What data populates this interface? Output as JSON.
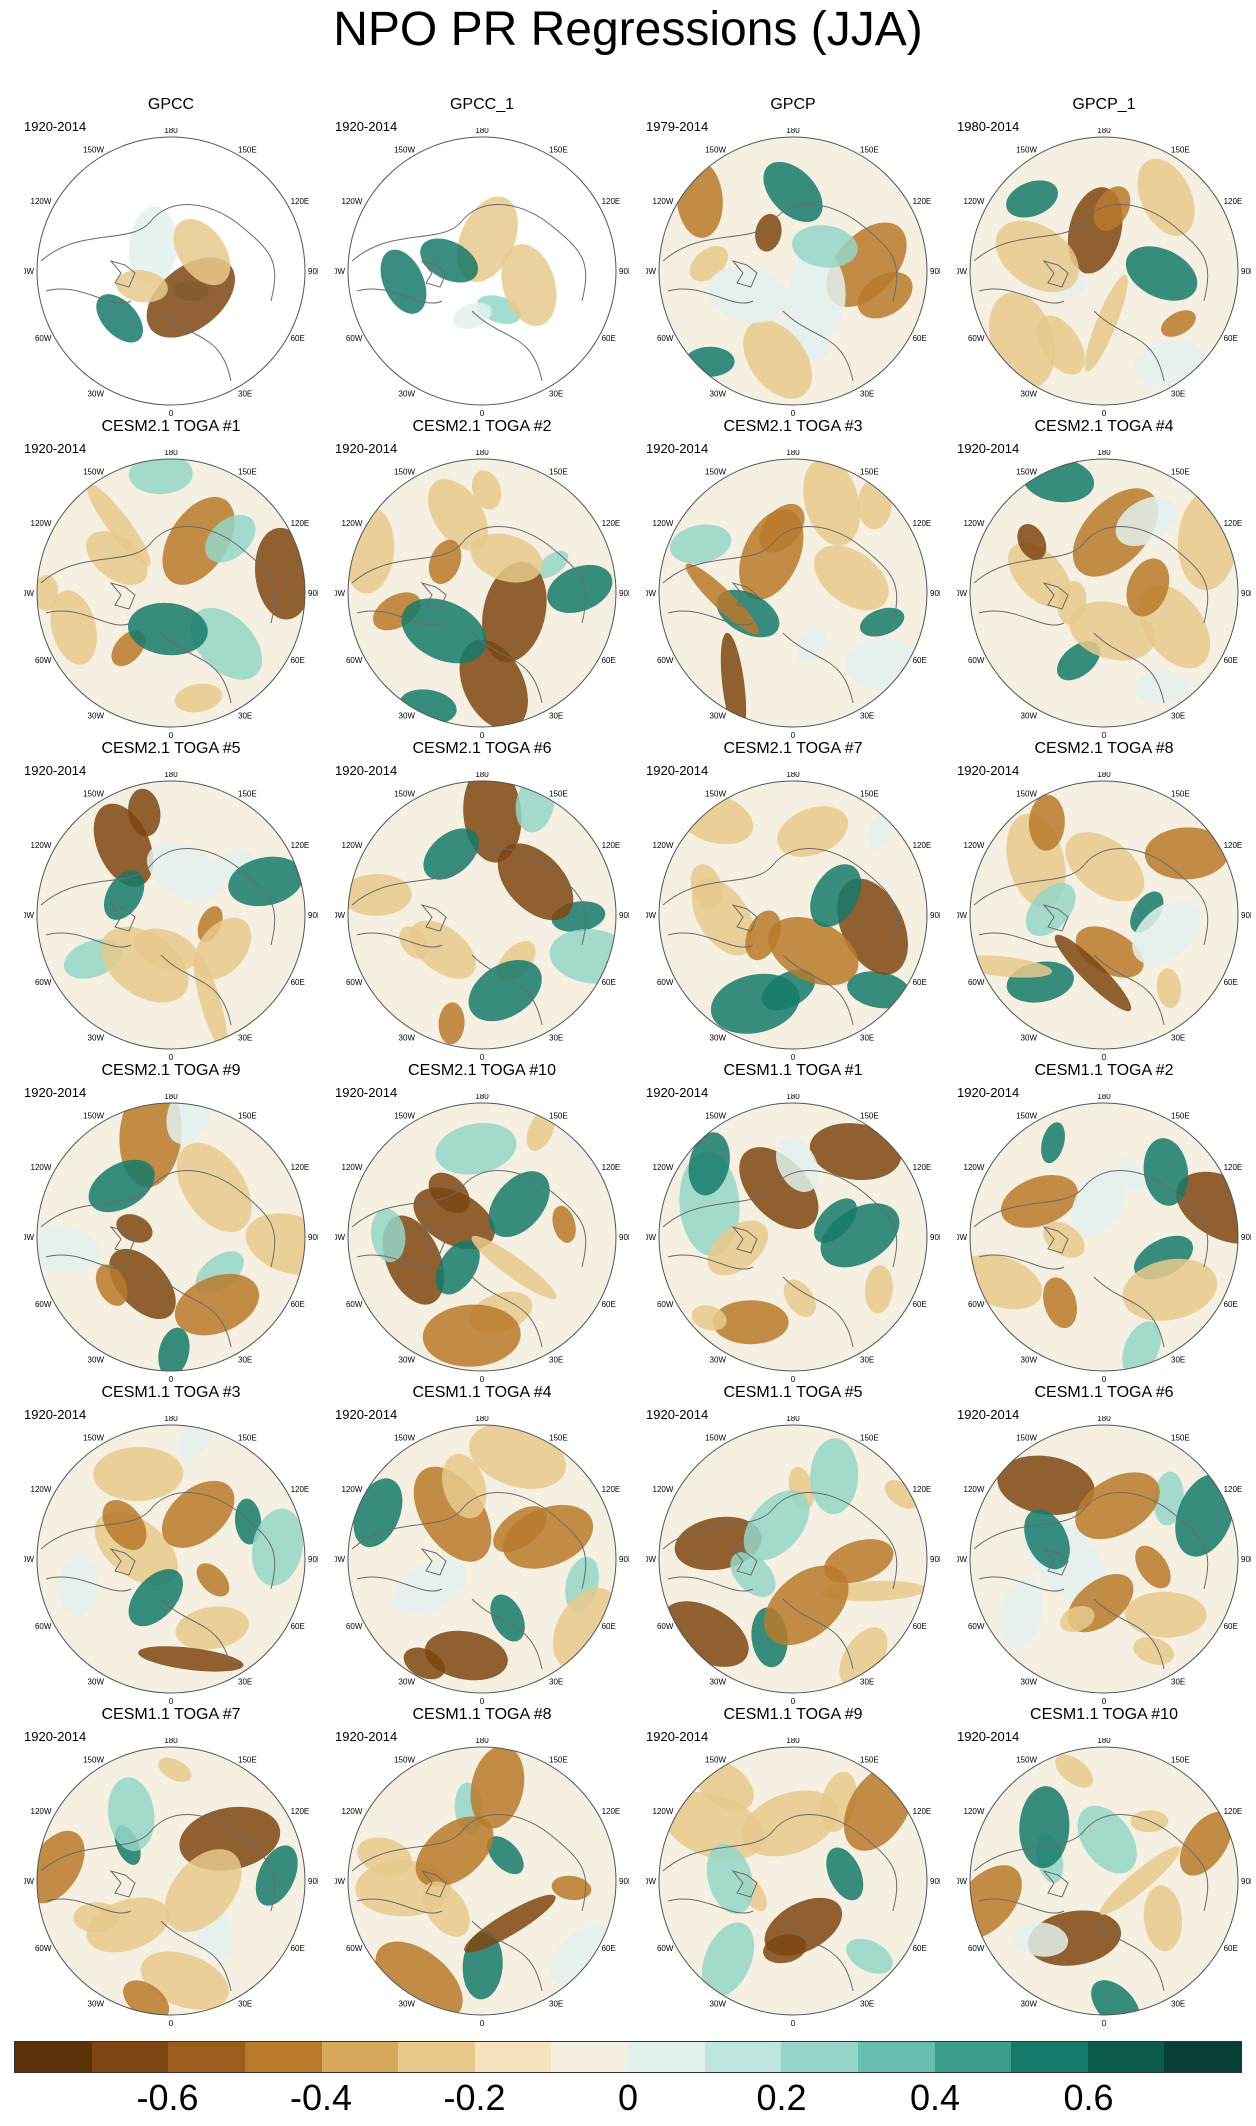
{
  "title": "NPO PR Regressions (JJA)",
  "map_labels": {
    "top": "180",
    "top_left": "150W",
    "top_right": "150E",
    "upper_left": "120W",
    "upper_right": "120E",
    "left": "90W",
    "right": "90E",
    "lower_left": "60W",
    "lower_right": "60E",
    "bottom_left": "30W",
    "bottom_right": "30E",
    "bottom": "0"
  },
  "panels": [
    {
      "name": "GPCC",
      "years": "1920-2014"
    },
    {
      "name": "GPCC_1",
      "years": "1920-2014"
    },
    {
      "name": "GPCP",
      "years": "1979-2014"
    },
    {
      "name": "GPCP_1",
      "years": "1980-2014"
    },
    {
      "name": "CESM2.1 TOGA #1",
      "years": "1920-2014"
    },
    {
      "name": "CESM2.1 TOGA #2",
      "years": "1920-2014"
    },
    {
      "name": "CESM2.1 TOGA #3",
      "years": "1920-2014"
    },
    {
      "name": "CESM2.1 TOGA #4",
      "years": "1920-2014"
    },
    {
      "name": "CESM2.1 TOGA #5",
      "years": "1920-2014"
    },
    {
      "name": "CESM2.1 TOGA #6",
      "years": "1920-2014"
    },
    {
      "name": "CESM2.1 TOGA #7",
      "years": "1920-2014"
    },
    {
      "name": "CESM2.1 TOGA #8",
      "years": "1920-2014"
    },
    {
      "name": "CESM2.1 TOGA #9",
      "years": "1920-2014"
    },
    {
      "name": "CESM2.1 TOGA #10",
      "years": "1920-2014"
    },
    {
      "name": "CESM1.1 TOGA #1",
      "years": "1920-2014"
    },
    {
      "name": "CESM1.1 TOGA #2",
      "years": "1920-2014"
    },
    {
      "name": "CESM1.1 TOGA #3",
      "years": "1920-2014"
    },
    {
      "name": "CESM1.1 TOGA #4",
      "years": "1920-2014"
    },
    {
      "name": "CESM1.1 TOGA #5",
      "years": "1920-2014"
    },
    {
      "name": "CESM1.1 TOGA #6",
      "years": "1920-2014"
    },
    {
      "name": "CESM1.1 TOGA #7",
      "years": "1920-2014"
    },
    {
      "name": "CESM1.1 TOGA #8",
      "years": "1920-2014"
    },
    {
      "name": "CESM1.1 TOGA #9",
      "years": "1920-2014"
    },
    {
      "name": "CESM1.1 TOGA #10",
      "years": "1920-2014"
    }
  ],
  "colorbar": {
    "colors": [
      "#5c3208",
      "#7e4612",
      "#9c5c1c",
      "#b97a2c",
      "#d6a95c",
      "#e8c98c",
      "#f4e3bd",
      "#f6f0e3",
      "#e3f1ee",
      "#bfe6de",
      "#95d6c8",
      "#66bfae",
      "#3a9c8b",
      "#167a6a",
      "#0b5a4c",
      "#053f35"
    ],
    "ticks": [
      "-0.6",
      "-0.4",
      "-0.2",
      "0",
      "0.2",
      "0.4",
      "0.6"
    ]
  }
}
